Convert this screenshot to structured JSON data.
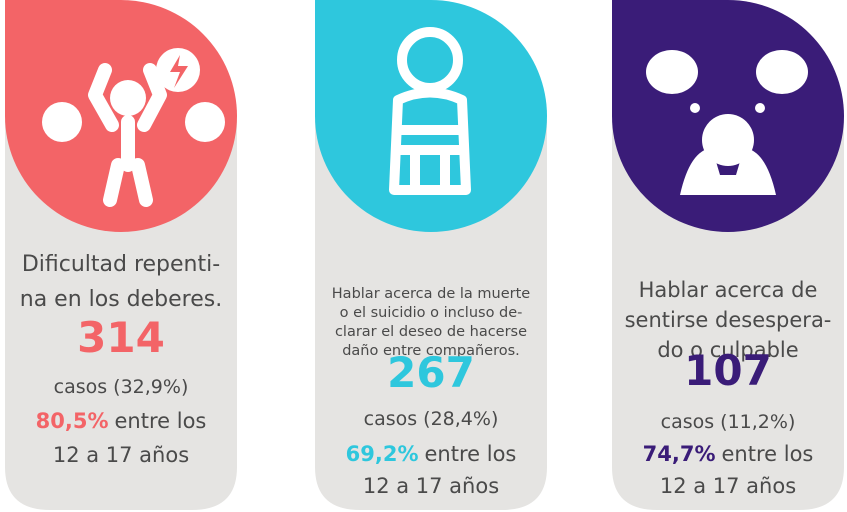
{
  "cards": [
    {
      "color": "#f36467",
      "description": [
        "Dificultad repenti-",
        "na en los deberes."
      ],
      "number": "314",
      "cases": "casos (32,9%)",
      "percent": "80,5%",
      "percent_text": "entre los",
      "age": "12 a 17 años"
    },
    {
      "color": "#2ec7dd",
      "description": [
        "Hablar acerca de la muerte",
        "o el suicidio o incluso de-",
        "clarar el deseo de hacerse",
        "daño entre compañeros."
      ],
      "number": "267",
      "cases": "casos (28,4%)",
      "percent": "69,2%",
      "percent_text": "entre los",
      "age": "12 a 17 años"
    },
    {
      "color": "#3a1c78",
      "description": [
        "Hablar acerca de",
        "sentirse desespera-",
        "do o culpable"
      ],
      "number": "107",
      "cases": "casos (11,2%)",
      "percent": "74,7%",
      "percent_text": "entre los",
      "age": "12 a 17 años"
    }
  ]
}
